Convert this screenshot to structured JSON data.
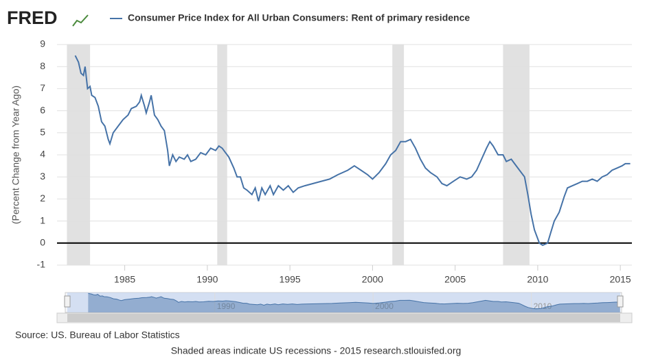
{
  "logo": "FRED",
  "chart_data": {
    "type": "line",
    "title": "Consumer Price Index for All Urban Consumers: Rent of primary residence",
    "y_label": "(Percent Change from Year Ago)",
    "source": "Source: US. Bureau of Labor Statistics",
    "footer": "Shaded areas indicate US recessions - 2015 research.stlouisfed.org",
    "xlim": [
      1980.9,
      2015.7
    ],
    "ylim": [
      -1,
      9
    ],
    "xticks": [
      1985,
      1990,
      1995,
      2000,
      2005,
      2010,
      2015
    ],
    "yticks": [
      -1,
      0,
      1,
      2,
      3,
      4,
      5,
      6,
      7,
      8,
      9
    ],
    "grid": true,
    "reference_line": 0,
    "recessions": [
      [
        1981.5,
        1982.9
      ],
      [
        1990.6,
        1991.2
      ],
      [
        2001.2,
        2001.9
      ],
      [
        2007.9,
        2009.5
      ]
    ],
    "navigator_ticks": [
      1990,
      2000,
      2010
    ],
    "series": [
      {
        "name": "Consumer Price Index for All Urban Consumers: Rent of primary residence",
        "color": "#4572a7",
        "x": [
          1982.0,
          1982.2,
          1982.35,
          1982.5,
          1982.6,
          1982.75,
          1982.9,
          1983.0,
          1983.2,
          1983.4,
          1983.6,
          1983.8,
          1984.0,
          1984.1,
          1984.3,
          1984.6,
          1984.9,
          1985.2,
          1985.4,
          1985.7,
          1985.9,
          1986.0,
          1986.2,
          1986.3,
          1986.5,
          1986.6,
          1986.8,
          1987.0,
          1987.2,
          1987.4,
          1987.6,
          1987.7,
          1987.9,
          1988.1,
          1988.3,
          1988.6,
          1988.8,
          1989.0,
          1989.3,
          1989.6,
          1989.9,
          1990.2,
          1990.5,
          1990.7,
          1990.9,
          1991.1,
          1991.3,
          1991.6,
          1991.8,
          1992.0,
          1992.2,
          1992.4,
          1992.7,
          1992.9,
          1993.1,
          1993.3,
          1993.5,
          1993.8,
          1994.0,
          1994.3,
          1994.6,
          1994.9,
          1995.2,
          1995.5,
          1995.9,
          1996.4,
          1996.9,
          1997.4,
          1997.9,
          1998.5,
          1998.9,
          1999.3,
          1999.7,
          2000.0,
          2000.4,
          2000.8,
          2001.1,
          2001.4,
          2001.7,
          2002.0,
          2002.3,
          2002.6,
          2002.9,
          2003.2,
          2003.5,
          2003.9,
          2004.2,
          2004.5,
          2004.9,
          2005.3,
          2005.7,
          2006.0,
          2006.3,
          2006.6,
          2006.9,
          2007.1,
          2007.3,
          2007.6,
          2007.9,
          2008.1,
          2008.4,
          2008.6,
          2008.9,
          2009.2,
          2009.4,
          2009.6,
          2009.8,
          2010.1,
          2010.3,
          2010.6,
          2010.8,
          2011.0,
          2011.3,
          2011.6,
          2011.8,
          2012.1,
          2012.4,
          2012.7,
          2013.0,
          2013.3,
          2013.6,
          2013.9,
          2014.2,
          2014.5,
          2014.8,
          2015.1,
          2015.3,
          2015.6
        ],
        "values": [
          8.5,
          8.2,
          7.7,
          7.6,
          8.0,
          7.0,
          7.1,
          6.7,
          6.6,
          6.2,
          5.5,
          5.3,
          4.7,
          4.5,
          5.0,
          5.3,
          5.6,
          5.8,
          6.1,
          6.2,
          6.4,
          6.7,
          6.2,
          5.9,
          6.4,
          6.7,
          5.8,
          5.6,
          5.3,
          5.1,
          4.2,
          3.5,
          4.0,
          3.7,
          3.9,
          3.8,
          4.0,
          3.7,
          3.8,
          4.1,
          4.0,
          4.3,
          4.2,
          4.4,
          4.3,
          4.1,
          3.9,
          3.4,
          3.0,
          3.0,
          2.5,
          2.4,
          2.2,
          2.5,
          1.9,
          2.5,
          2.2,
          2.6,
          2.2,
          2.6,
          2.4,
          2.6,
          2.3,
          2.5,
          2.6,
          2.7,
          2.8,
          2.9,
          3.1,
          3.3,
          3.5,
          3.3,
          3.1,
          2.9,
          3.2,
          3.6,
          4.0,
          4.2,
          4.6,
          4.6,
          4.7,
          4.3,
          3.8,
          3.4,
          3.2,
          3.0,
          2.7,
          2.6,
          2.8,
          3.0,
          2.9,
          3.0,
          3.3,
          3.8,
          4.3,
          4.6,
          4.4,
          4.0,
          4.0,
          3.7,
          3.8,
          3.6,
          3.3,
          3.0,
          2.2,
          1.3,
          0.6,
          0.0,
          -0.1,
          0.0,
          0.5,
          1.0,
          1.4,
          2.1,
          2.5,
          2.6,
          2.7,
          2.8,
          2.8,
          2.9,
          2.8,
          3.0,
          3.1,
          3.3,
          3.4,
          3.5,
          3.6,
          3.6
        ]
      }
    ]
  }
}
